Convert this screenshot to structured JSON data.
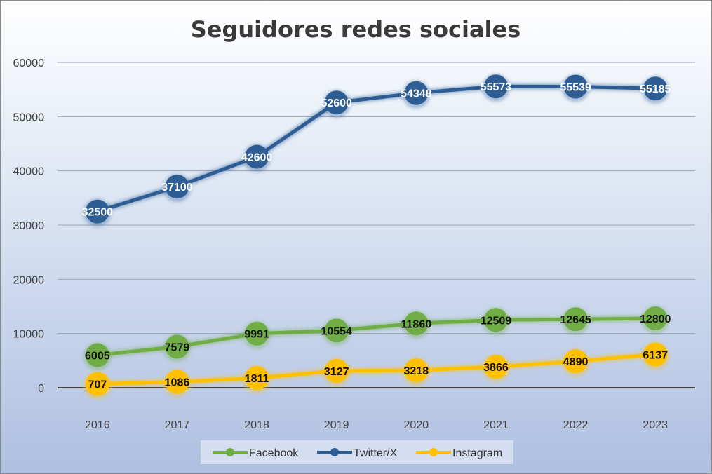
{
  "chart_data": {
    "type": "line",
    "title": "Seguidores redes sociales",
    "xlabel": "",
    "ylabel": "",
    "categories": [
      "2016",
      "2017",
      "2018",
      "2019",
      "2020",
      "2021",
      "2022",
      "2023"
    ],
    "ylim": [
      0,
      60000
    ],
    "yticks": [
      "0",
      "10000",
      "20000",
      "30000",
      "40000",
      "50000",
      "60000"
    ],
    "grid": true,
    "legend_position": "bottom",
    "series": [
      {
        "name": "Facebook",
        "color": "#70ad47",
        "label_style": "dark",
        "values": [
          6005,
          7579,
          9991,
          10554,
          11860,
          12509,
          12645,
          12800
        ]
      },
      {
        "name": "Twitter/X",
        "color": "#2e5d94",
        "label_style": "light",
        "values": [
          32500,
          37100,
          42600,
          52600,
          54348,
          55573,
          55539,
          55185
        ]
      },
      {
        "name": "Instagram",
        "color": "#ffc000",
        "label_style": "dark",
        "values": [
          707,
          1086,
          1811,
          3127,
          3218,
          3866,
          4890,
          6137
        ]
      }
    ]
  }
}
